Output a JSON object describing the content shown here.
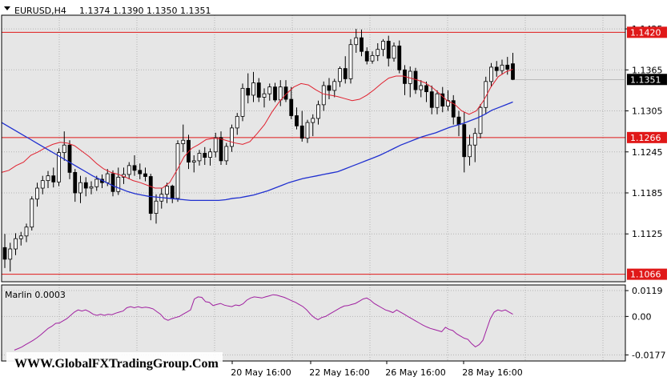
{
  "header": {
    "symbol_timeframe": "EURUSD,H4",
    "ohlc": "1.1374 1.1390 1.1350 1.1351"
  },
  "indicator": {
    "label": "Marlin 0.0003"
  },
  "watermark": "WWW.GlobalFXTradingGroup.Com",
  "colors": {
    "background": "#ffffff",
    "plot_bg": "#e6e6e6",
    "grid": "#b4b4b4",
    "candle_up": "#ffffff",
    "candle_down": "#000000",
    "ma_fast": "#e0202e",
    "ma_slow": "#2030d0",
    "level_line": "#e01818",
    "oscillator": "#a020a0"
  },
  "chart_data": [
    {
      "type": "candlestick",
      "title": "EURUSD,H4",
      "ylim": [
        1.1055,
        1.1445
      ],
      "y_ticks": [
        "1.1425",
        "1.1365",
        "1.1305",
        "1.1245",
        "1.1185",
        "1.1125"
      ],
      "x_ticks": [
        "20 May 16:00",
        "22 May 16:00",
        "26 May 16:00",
        "28 May 16:00"
      ],
      "horizontal_levels": [
        {
          "value": 1.142,
          "label": "1.1420"
        },
        {
          "value": 1.1266,
          "label": "1.1266"
        },
        {
          "value": 1.1066,
          "label": "1.1066"
        }
      ],
      "current_price": {
        "value": 1.1351,
        "label": "1.1351"
      },
      "grid": true,
      "candles": [
        [
          1.1105,
          1.1125,
          1.1075,
          1.1088
        ],
        [
          1.1088,
          1.1112,
          1.107,
          1.1103
        ],
        [
          1.1103,
          1.1126,
          1.1094,
          1.1118
        ],
        [
          1.1118,
          1.1128,
          1.1108,
          1.1122
        ],
        [
          1.1122,
          1.114,
          1.1113,
          1.1135
        ],
        [
          1.1135,
          1.118,
          1.113,
          1.1176
        ],
        [
          1.1176,
          1.12,
          1.1165,
          1.1192
        ],
        [
          1.1192,
          1.121,
          1.1183,
          1.1203
        ],
        [
          1.1203,
          1.1217,
          1.1192,
          1.121
        ],
        [
          1.121,
          1.1222,
          1.1193,
          1.1201
        ],
        [
          1.1201,
          1.125,
          1.1195,
          1.1244
        ],
        [
          1.1244,
          1.1275,
          1.1232,
          1.1255
        ],
        [
          1.1255,
          1.1262,
          1.1205,
          1.1215
        ],
        [
          1.1215,
          1.122,
          1.1172,
          1.1185
        ],
        [
          1.1185,
          1.121,
          1.117,
          1.12
        ],
        [
          1.12,
          1.1208,
          1.118,
          1.1192
        ],
        [
          1.1192,
          1.1202,
          1.1183,
          1.1194
        ],
        [
          1.1194,
          1.121,
          1.1188,
          1.1205
        ],
        [
          1.1205,
          1.1212,
          1.1192,
          1.12
        ],
        [
          1.12,
          1.122,
          1.1195,
          1.1213
        ],
        [
          1.1213,
          1.1218,
          1.118,
          1.1187
        ],
        [
          1.1187,
          1.1222,
          1.1182,
          1.1208
        ],
        [
          1.1208,
          1.1222,
          1.1198,
          1.1212
        ],
        [
          1.1212,
          1.123,
          1.1205,
          1.1225
        ],
        [
          1.1225,
          1.124,
          1.121,
          1.1218
        ],
        [
          1.1218,
          1.1228,
          1.1205,
          1.1213
        ],
        [
          1.1213,
          1.1222,
          1.1202,
          1.1209
        ],
        [
          1.1209,
          1.1213,
          1.1145,
          1.1155
        ],
        [
          1.1155,
          1.1183,
          1.114,
          1.1173
        ],
        [
          1.1173,
          1.1192,
          1.1162,
          1.1183
        ],
        [
          1.1183,
          1.12,
          1.117,
          1.1195
        ],
        [
          1.1195,
          1.1197,
          1.117,
          1.1177
        ],
        [
          1.1177,
          1.1262,
          1.1172,
          1.1257
        ],
        [
          1.1257,
          1.1285,
          1.1245,
          1.1262
        ],
        [
          1.1262,
          1.127,
          1.122,
          1.123
        ],
        [
          1.123,
          1.124,
          1.1215,
          1.1232
        ],
        [
          1.1232,
          1.1248,
          1.1225,
          1.1243
        ],
        [
          1.1243,
          1.1252,
          1.1226,
          1.1237
        ],
        [
          1.1237,
          1.125,
          1.1225,
          1.1245
        ],
        [
          1.1245,
          1.1273,
          1.1237,
          1.1266
        ],
        [
          1.1266,
          1.1275,
          1.1226,
          1.1232
        ],
        [
          1.1232,
          1.1258,
          1.1226,
          1.1253
        ],
        [
          1.1253,
          1.1285,
          1.1245,
          1.128
        ],
        [
          1.128,
          1.1302,
          1.127,
          1.1297
        ],
        [
          1.1297,
          1.1345,
          1.129,
          1.1338
        ],
        [
          1.1338,
          1.136,
          1.1316,
          1.1328
        ],
        [
          1.1328,
          1.1362,
          1.1318,
          1.1346
        ],
        [
          1.1346,
          1.1353,
          1.1318,
          1.1325
        ],
        [
          1.1325,
          1.1338,
          1.131,
          1.133
        ],
        [
          1.133,
          1.1345,
          1.132,
          1.134
        ],
        [
          1.134,
          1.1346,
          1.1318,
          1.1321
        ],
        [
          1.1321,
          1.135,
          1.1312,
          1.134
        ],
        [
          1.134,
          1.135,
          1.1318,
          1.1322
        ],
        [
          1.1322,
          1.134,
          1.1293,
          1.1298
        ],
        [
          1.1298,
          1.131,
          1.1278,
          1.1283
        ],
        [
          1.1283,
          1.1305,
          1.126,
          1.1265
        ],
        [
          1.1265,
          1.1292,
          1.1258,
          1.1288
        ],
        [
          1.1288,
          1.13,
          1.1268,
          1.1294
        ],
        [
          1.1294,
          1.132,
          1.1285,
          1.1314
        ],
        [
          1.1314,
          1.1348,
          1.1305,
          1.1342
        ],
        [
          1.1342,
          1.1353,
          1.1322,
          1.1335
        ],
        [
          1.1335,
          1.1352,
          1.1325,
          1.1348
        ],
        [
          1.1348,
          1.137,
          1.134,
          1.1367
        ],
        [
          1.1367,
          1.1385,
          1.1345,
          1.1352
        ],
        [
          1.1352,
          1.141,
          1.1345,
          1.1402
        ],
        [
          1.1402,
          1.1425,
          1.139,
          1.1412
        ],
        [
          1.1412,
          1.1424,
          1.1385,
          1.1392
        ],
        [
          1.1392,
          1.1398,
          1.1373,
          1.1378
        ],
        [
          1.1378,
          1.1392,
          1.1374,
          1.1386
        ],
        [
          1.1386,
          1.1404,
          1.1378,
          1.1395
        ],
        [
          1.1395,
          1.141,
          1.1385,
          1.1407
        ],
        [
          1.1407,
          1.1415,
          1.137,
          1.1382
        ],
        [
          1.1382,
          1.1405,
          1.1377,
          1.14
        ],
        [
          1.14,
          1.1408,
          1.136,
          1.1365
        ],
        [
          1.1365,
          1.1372,
          1.1328,
          1.1345
        ],
        [
          1.1345,
          1.137,
          1.1325,
          1.1363
        ],
        [
          1.1363,
          1.1368,
          1.133,
          1.1336
        ],
        [
          1.1336,
          1.135,
          1.1325,
          1.1342
        ],
        [
          1.1342,
          1.1348,
          1.1318,
          1.1333
        ],
        [
          1.1333,
          1.1342,
          1.13,
          1.131
        ],
        [
          1.131,
          1.1335,
          1.13,
          1.133
        ],
        [
          1.133,
          1.134,
          1.1303,
          1.1312
        ],
        [
          1.1312,
          1.1335,
          1.1305,
          1.132
        ],
        [
          1.132,
          1.1328,
          1.1285,
          1.1296
        ],
        [
          1.1296,
          1.1305,
          1.1268,
          1.1285
        ],
        [
          1.1285,
          1.1303,
          1.1215,
          1.1238
        ],
        [
          1.1238,
          1.127,
          1.1225,
          1.1255
        ],
        [
          1.1255,
          1.128,
          1.123,
          1.1272
        ],
        [
          1.1272,
          1.1315,
          1.1265,
          1.131
        ],
        [
          1.131,
          1.1355,
          1.13,
          1.1348
        ],
        [
          1.1348,
          1.1375,
          1.134,
          1.1369
        ],
        [
          1.1369,
          1.1378,
          1.1355,
          1.1364
        ],
        [
          1.1364,
          1.138,
          1.1358,
          1.1372
        ],
        [
          1.1372,
          1.1384,
          1.1358,
          1.1366
        ],
        [
          1.1374,
          1.139,
          1.135,
          1.1351
        ]
      ],
      "ma_fast": [
        1.1215,
        1.1218,
        1.1225,
        1.123,
        1.124,
        1.1245,
        1.1251,
        1.1256,
        1.1259,
        1.1258,
        1.1254,
        1.1246,
        1.1238,
        1.1228,
        1.122,
        1.1215,
        1.1212,
        1.1208,
        1.1203,
        1.12,
        1.1196,
        1.1192,
        1.1192,
        1.12,
        1.1218,
        1.1238,
        1.125,
        1.1256,
        1.1263,
        1.1265,
        1.1264,
        1.1261,
        1.1258,
        1.1256,
        1.126,
        1.1272,
        1.1285,
        1.1303,
        1.1318,
        1.133,
        1.134,
        1.1345,
        1.1343,
        1.1336,
        1.133,
        1.1328,
        1.1326,
        1.1323,
        1.132,
        1.1322,
        1.1328,
        1.1336,
        1.1345,
        1.1353,
        1.1356,
        1.1356,
        1.1353,
        1.135,
        1.1346,
        1.1339,
        1.133,
        1.132,
        1.1315,
        1.1305,
        1.13,
        1.1305,
        1.132,
        1.134,
        1.1355,
        1.1362,
        1.1366
      ],
      "ma_slow": [
        1.1288,
        1.1282,
        1.1276,
        1.127,
        1.1264,
        1.1258,
        1.1252,
        1.1246,
        1.124,
        1.1234,
        1.1228,
        1.1222,
        1.1216,
        1.121,
        1.1205,
        1.12,
        1.1195,
        1.1191,
        1.1187,
        1.1184,
        1.1182,
        1.118,
        1.1179,
        1.1178,
        1.1177,
        1.1176,
        1.1175,
        1.1174,
        1.1174,
        1.1174,
        1.1174,
        1.1174,
        1.1175,
        1.1177,
        1.1178,
        1.118,
        1.1182,
        1.1185,
        1.1188,
        1.1192,
        1.1196,
        1.12,
        1.1203,
        1.1206,
        1.1208,
        1.121,
        1.1212,
        1.1214,
        1.1216,
        1.122,
        1.1224,
        1.1228,
        1.1232,
        1.1236,
        1.124,
        1.1245,
        1.125,
        1.1255,
        1.1259,
        1.1263,
        1.1267,
        1.127,
        1.1273,
        1.1277,
        1.1281,
        1.1284,
        1.1287,
        1.1291,
        1.1295,
        1.13,
        1.1306,
        1.131,
        1.1314,
        1.1318
      ]
    },
    {
      "type": "line",
      "title": "Marlin 0.0003",
      "ylim": [
        -0.0205,
        0.0145
      ],
      "y_ticks": [
        "0.0119",
        "0.00",
        "-0.0177"
      ],
      "series": [
        {
          "values": [
            -0.0155,
            -0.0148,
            -0.014,
            -0.013,
            -0.012,
            -0.011,
            -0.0098,
            -0.0085,
            -0.007,
            -0.0055,
            -0.0045,
            -0.0032,
            -0.003,
            -0.002,
            -0.001,
            0.0005,
            0.002,
            0.003,
            0.0025,
            0.003,
            0.0022,
            0.001,
            0.0005,
            0.001,
            0.0005,
            0.001,
            0.0008,
            0.0015,
            0.002,
            0.0025,
            0.004,
            0.0045,
            0.004,
            0.0045,
            0.004,
            0.0043,
            0.004,
            0.0035,
            0.0022,
            0.001,
            -0.001,
            -0.0018,
            -0.001,
            -0.0005,
            0.0,
            0.001,
            0.002,
            0.003,
            0.008,
            0.009,
            0.0088,
            0.0068,
            0.0065,
            0.005,
            0.0055,
            0.006,
            0.0052,
            0.0048,
            0.0045,
            0.0053,
            0.005,
            0.0058,
            0.0075,
            0.0085,
            0.009,
            0.0088,
            0.0085,
            0.009,
            0.0095,
            0.01,
            0.0098,
            0.0093,
            0.0088,
            0.008,
            0.0072,
            0.0065,
            0.0055,
            0.0045,
            0.003,
            0.001,
            -0.0005,
            -0.0015,
            -0.0005,
            0.0,
            0.001,
            0.002,
            0.003,
            0.004,
            0.0048,
            0.005,
            0.0055,
            0.006,
            0.007,
            0.008,
            0.0085,
            0.0075,
            0.006,
            0.005,
            0.004,
            0.003,
            0.0025,
            0.0018,
            0.003,
            0.002,
            0.001,
            0.0,
            -0.001,
            -0.002,
            -0.003,
            -0.004,
            -0.0048,
            -0.0055,
            -0.006,
            -0.0065,
            -0.007,
            -0.005,
            -0.006,
            -0.0065,
            -0.008,
            -0.009,
            -0.01,
            -0.0105,
            -0.0125,
            -0.014,
            -0.013,
            -0.011,
            -0.006,
            -0.001,
            0.002,
            0.003,
            0.0025,
            0.003,
            0.002,
            0.001
          ]
        }
      ]
    }
  ]
}
